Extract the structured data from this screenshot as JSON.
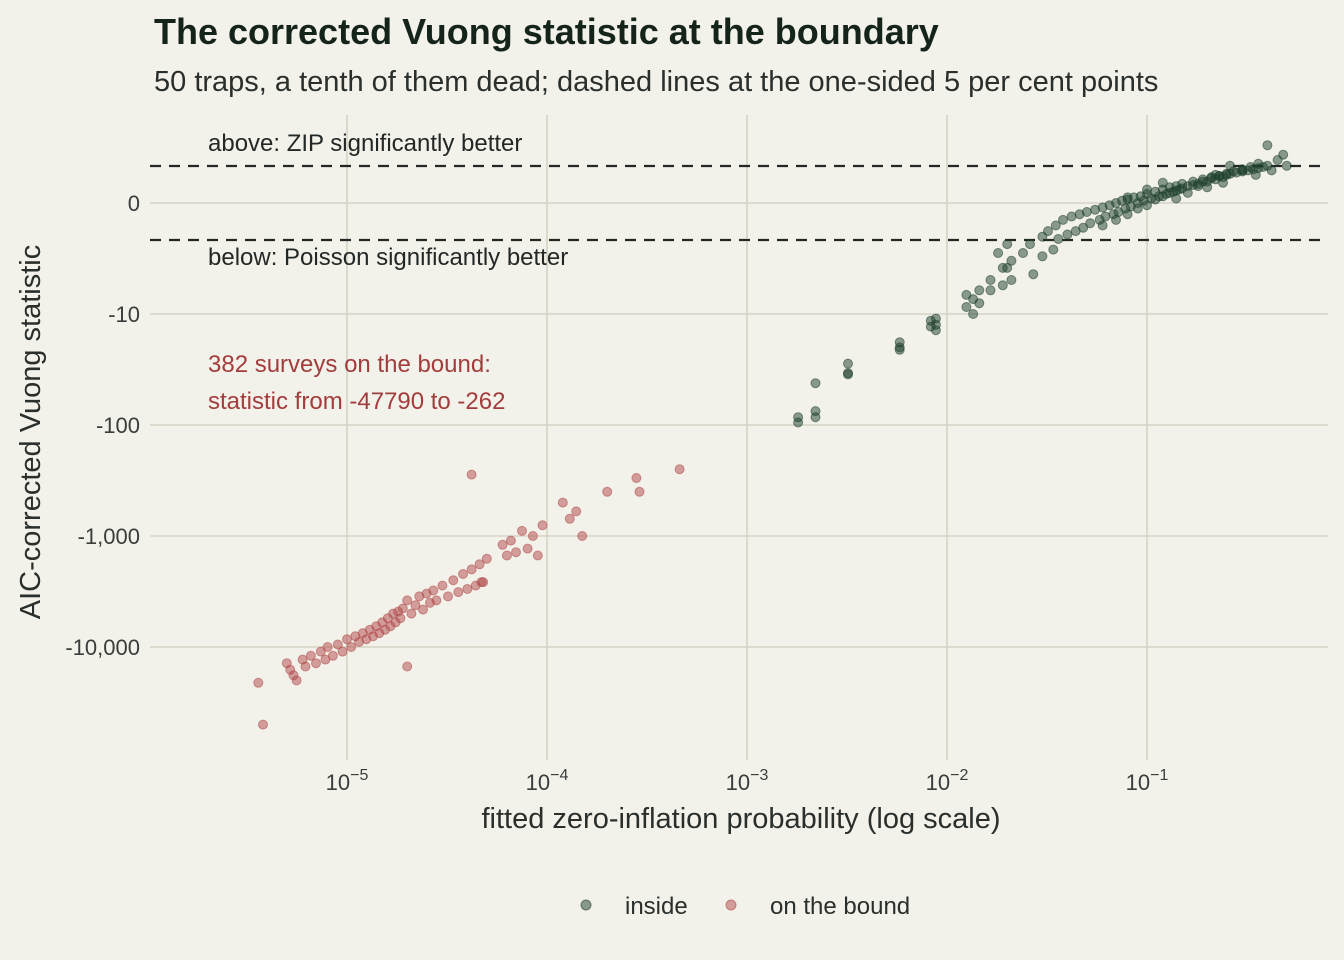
{
  "chart_data": {
    "type": "scatter",
    "title": "The corrected Vuong statistic at the boundary",
    "subtitle": "50 traps, a tenth of them dead; dashed lines at the one-sided 5 per cent points",
    "xlabel": "fitted zero-inflation probability (log scale)",
    "ylabel": "AIC-corrected Vuong statistic",
    "x_scale": "log10",
    "y_scale": "signed pseudo-log",
    "x_range": [
      2e-06,
      0.8
    ],
    "y_range": [
      -60000,
      8
    ],
    "x_ticks": [
      {
        "value": 1e-05,
        "base": "10",
        "exp": "−5"
      },
      {
        "value": 0.0001,
        "base": "10",
        "exp": "−4"
      },
      {
        "value": 0.001,
        "base": "10",
        "exp": "−3"
      },
      {
        "value": 0.01,
        "base": "10",
        "exp": "−2"
      },
      {
        "value": 0.1,
        "base": "10",
        "exp": "−1"
      }
    ],
    "y_ticks": [
      {
        "value": 0,
        "label": "0"
      },
      {
        "value": -10,
        "label": "-10"
      },
      {
        "value": -100,
        "label": "-100"
      },
      {
        "value": -1000,
        "label": "-1,000"
      },
      {
        "value": -10000,
        "label": "-10,000"
      }
    ],
    "reference_lines": [
      {
        "y": 3.29,
        "style": "dashed",
        "color": "#232826"
      },
      {
        "y": -3.29,
        "style": "dashed",
        "color": "#232826"
      }
    ],
    "grid": true,
    "legend": {
      "position": "bottom"
    },
    "annotations": [
      {
        "text": "above: ZIP significantly better",
        "color": "#232826"
      },
      {
        "text": "below: Poisson significantly better",
        "color": "#232826"
      },
      {
        "text": "382 surveys on the bound:",
        "color": "#a33d3d"
      },
      {
        "text": "statistic from -47790 to -262",
        "color": "#a33d3d"
      }
    ],
    "series": [
      {
        "name": "inside",
        "color": "#1e3f2c",
        "x": [
          0.0018,
          0.0018,
          0.0022,
          0.0022,
          0.0022,
          0.0032,
          0.0032,
          0.0032,
          0.0058,
          0.0058,
          0.0058,
          0.0083,
          0.0083,
          0.0088,
          0.0088,
          0.0088,
          0.0125,
          0.0125,
          0.0135,
          0.0135,
          0.0145,
          0.0145,
          0.0165,
          0.0165,
          0.018,
          0.019,
          0.019,
          0.02,
          0.02,
          0.021,
          0.021,
          0.024,
          0.026,
          0.027,
          0.03,
          0.03,
          0.032,
          0.034,
          0.035,
          0.036,
          0.038,
          0.04,
          0.042,
          0.044,
          0.046,
          0.048,
          0.05,
          0.052,
          0.055,
          0.058,
          0.06,
          0.062,
          0.065,
          0.068,
          0.07,
          0.072,
          0.075,
          0.078,
          0.08,
          0.083,
          0.086,
          0.09,
          0.093,
          0.096,
          0.1,
          0.105,
          0.11,
          0.115,
          0.12,
          0.125,
          0.13,
          0.135,
          0.14,
          0.145,
          0.15,
          0.16,
          0.17,
          0.18,
          0.19,
          0.2,
          0.21,
          0.22,
          0.23,
          0.24,
          0.25,
          0.26,
          0.28,
          0.3,
          0.32,
          0.34,
          0.36,
          0.38,
          0.4,
          0.42,
          0.45,
          0.48,
          0.5,
          0.06,
          0.07,
          0.08,
          0.09,
          0.1,
          0.11,
          0.12,
          0.13,
          0.14,
          0.15,
          0.17,
          0.19,
          0.21,
          0.23,
          0.25,
          0.27,
          0.3,
          0.33,
          0.36,
          0.4,
          0.08,
          0.1,
          0.12,
          0.14,
          0.16,
          0.18,
          0.2,
          0.22,
          0.24,
          0.26,
          0.3,
          0.35
        ],
        "y": [
          -85,
          -95,
          -42,
          -75,
          -85,
          -28,
          -35,
          -34,
          -18,
          -20,
          -21,
          -11.5,
          -13,
          -11,
          -12.5,
          -14,
          -7.5,
          -9,
          -8,
          -10,
          -7,
          -8.5,
          -6,
          -7,
          -4,
          -5,
          -6.5,
          -3.5,
          -5,
          -4.5,
          -6,
          -4,
          -3.5,
          -5.5,
          -3,
          -4.2,
          -2.5,
          -3.8,
          -2,
          -3.2,
          -1.5,
          -2.8,
          -1.2,
          -2.5,
          -1,
          -2.2,
          -0.8,
          -1.8,
          -0.6,
          -1.5,
          -0.4,
          -1.2,
          -0.2,
          -1,
          0,
          -0.8,
          0.2,
          -0.5,
          0.3,
          -0.3,
          0.5,
          0,
          0.6,
          0.2,
          0.8,
          0.4,
          1,
          0.6,
          1.2,
          0.8,
          1.4,
          1,
          1.5,
          1.2,
          1.7,
          1.5,
          1.9,
          1.7,
          2.1,
          1.9,
          2.3,
          2.1,
          2.4,
          2.3,
          2.5,
          2.6,
          2.7,
          2.8,
          2.9,
          3,
          3.1,
          3.2,
          3.3,
          2.9,
          3.6,
          3.9,
          3.3,
          -2,
          -1.5,
          -1,
          -0.5,
          -0.2,
          0.3,
          0.6,
          0.9,
          1.1,
          1.3,
          1.6,
          1.9,
          2.2,
          2.4,
          2.6,
          2.8,
          3,
          3.2,
          3.4,
          4.5,
          0.5,
          1.2,
          1.8,
          0.4,
          0.9,
          1.5,
          1.4,
          2.5,
          1.8,
          3.3,
          2.9,
          2.5
        ]
      },
      {
        "name": "on the bound",
        "color": "#b04848",
        "x": [
          3.6e-06,
          3.8e-06,
          5e-06,
          5.2e-06,
          5.4e-06,
          5.6e-06,
          6e-06,
          6.2e-06,
          6.6e-06,
          7e-06,
          7.4e-06,
          7.8e-06,
          8e-06,
          8.5e-06,
          9e-06,
          9.5e-06,
          1e-05,
          1.05e-05,
          1.1e-05,
          1.15e-05,
          1.2e-05,
          1.25e-05,
          1.3e-05,
          1.35e-05,
          1.4e-05,
          1.45e-05,
          1.5e-05,
          1.55e-05,
          1.6e-05,
          1.65e-05,
          1.7e-05,
          1.75e-05,
          1.8e-05,
          1.85e-05,
          1.9e-05,
          2e-05,
          2.1e-05,
          2.2e-05,
          2.3e-05,
          2.4e-05,
          2.5e-05,
          2.6e-05,
          2.7e-05,
          2.8e-05,
          3e-05,
          3.2e-05,
          3.4e-05,
          3.6e-05,
          3.8e-05,
          4e-05,
          4.2e-05,
          4.4e-05,
          4.6e-05,
          4.8e-05,
          5e-05,
          6e-05,
          6.3e-05,
          6.6e-05,
          7e-05,
          7.5e-05,
          8e-05,
          8.5e-05,
          9e-05,
          9.5e-05,
          0.00012,
          0.00013,
          0.00014,
          0.00015,
          0.0002,
          0.00028,
          0.00029,
          0.00046,
          4.7e-05,
          4.2e-05,
          2e-05
        ],
        "y": [
          -21000,
          -50000,
          -14000,
          -16000,
          -18000,
          -20000,
          -13000,
          -15000,
          -12000,
          -14000,
          -11000,
          -13000,
          -10000,
          -12000,
          -9500,
          -11000,
          -8500,
          -10000,
          -8000,
          -9000,
          -7500,
          -8500,
          -7000,
          -8000,
          -6500,
          -7500,
          -6000,
          -7000,
          -5500,
          -6500,
          -5000,
          -6000,
          -4800,
          -5500,
          -4500,
          -3800,
          -5000,
          -4200,
          -3500,
          -4600,
          -3300,
          -4000,
          -3100,
          -3800,
          -2800,
          -3500,
          -2500,
          -3200,
          -2200,
          -3000,
          -2000,
          -2800,
          -1800,
          -2600,
          -1600,
          -1200,
          -1500,
          -1100,
          -1400,
          -900,
          -1300,
          -1000,
          -1500,
          -800,
          -500,
          -700,
          -600,
          -1000,
          -400,
          -300,
          -400,
          -250,
          -2600,
          -280,
          -15000
        ]
      }
    ]
  }
}
